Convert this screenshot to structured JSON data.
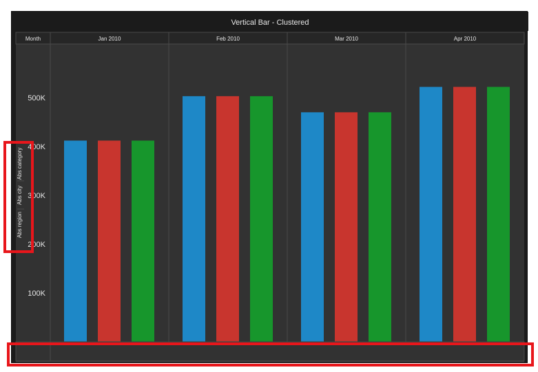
{
  "chart_data": {
    "type": "bar",
    "title": "Vertical Bar - Clustered",
    "header_label": "Month",
    "categories": [
      "Jan 2010",
      "Feb 2010",
      "Mar 2010",
      "Apr 2010"
    ],
    "series": [
      {
        "name": "Abs category",
        "color": "#1e88c7",
        "values": [
          412000,
          503000,
          470000,
          522000
        ]
      },
      {
        "name": "Abs city",
        "color": "#c8352e",
        "values": [
          412000,
          503000,
          470000,
          522000
        ]
      },
      {
        "name": "Abs region",
        "color": "#17962c",
        "values": [
          412000,
          503000,
          470000,
          522000
        ]
      }
    ],
    "y_ticks": [
      100000,
      200000,
      300000,
      400000,
      500000
    ],
    "y_tick_labels": [
      "100K",
      "200K",
      "300K",
      "400K",
      "500K"
    ],
    "ylim": [
      0,
      600000
    ],
    "grid": false,
    "legend_placement": "left",
    "legend_labels": [
      "Abs category",
      "Abs city",
      "Abs region"
    ],
    "legend_orientation": "vertical"
  },
  "colors": {
    "outer_background": "#1b1b1b",
    "plot_background": "#323232",
    "header_background": "#262626",
    "grid_line": "#4a4a4a",
    "text": "#e6e6e6",
    "annotation": "#e8161b"
  }
}
